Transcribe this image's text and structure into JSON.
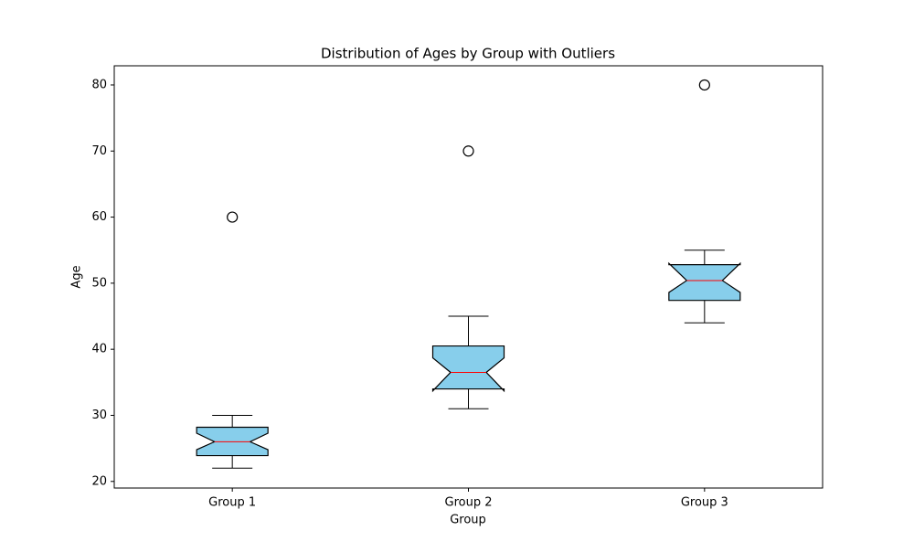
{
  "chart_data": {
    "type": "box",
    "title": "Distribution of Ages by Group with Outliers",
    "xlabel": "Group",
    "ylabel": "Age",
    "categories": [
      "Group 1",
      "Group 2",
      "Group 3"
    ],
    "boxes": [
      {
        "whislo": 22,
        "q1": 23.9,
        "med": 26,
        "q3": 28.2,
        "whishi": 30,
        "notch_low": 24.8,
        "notch_high": 27.3,
        "fliers": [
          60
        ]
      },
      {
        "whislo": 31,
        "q1": 34,
        "med": 36.5,
        "q3": 40.5,
        "whishi": 45,
        "notch_low": 33.7,
        "notch_high": 38.7,
        "fliers": [
          70
        ]
      },
      {
        "whislo": 44,
        "q1": 47.4,
        "med": 50.4,
        "q3": 52.8,
        "whishi": 55,
        "notch_low": 48.6,
        "notch_high": 53.0,
        "fliers": [
          80
        ]
      }
    ],
    "box_color": "#87ceeb",
    "median_color": "#ff0000",
    "ylim": [
      19.0,
      82.9
    ],
    "yticks": [
      20,
      30,
      40,
      50,
      60,
      70,
      80
    ]
  }
}
